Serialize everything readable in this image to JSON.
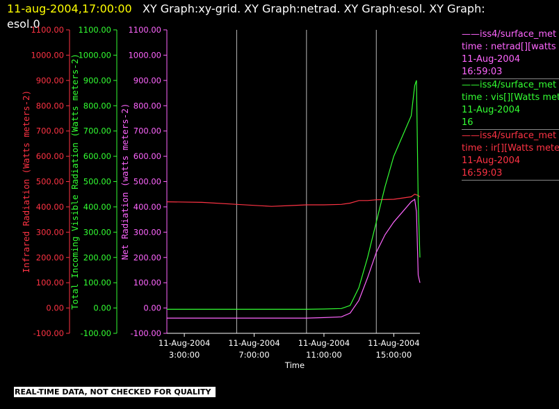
{
  "header": {
    "timestamp": "11-aug-2004,17:00:00",
    "title": "XY Graph:xy-grid.  XY Graph:netrad.  XY Graph:esol.  XY Graph:",
    "title_line2": "esol.0"
  },
  "legend": [
    {
      "color": "#ff66ff",
      "lines": [
        "——iss4/surface_met",
        "time : netrad[][watts me",
        "11-Aug-2004",
        "16:59:03"
      ]
    },
    {
      "color": "#33ff33",
      "lines": [
        "——iss4/surface_met",
        "time : vis[][Watts meter",
        "11-Aug-2004",
        "16"
      ]
    },
    {
      "color": "#ff3344",
      "lines": [
        "——iss4/surface_met",
        "time : ir[][Watts meters",
        "11-Aug-2004",
        "16:59:03"
      ]
    }
  ],
  "footer": "REAL-TIME DATA, NOT CHECKED FOR QUALITY",
  "chart_data": {
    "type": "line",
    "xlabel": "Time",
    "x_ticks": [
      {
        "date": "11-Aug-2004",
        "time": "3:00:00",
        "hour": 3
      },
      {
        "date": "11-Aug-2004",
        "time": "7:00:00",
        "hour": 7
      },
      {
        "date": "11-Aug-2004",
        "time": "11:00:00",
        "hour": 11
      },
      {
        "date": "11-Aug-2004",
        "time": "15:00:00",
        "hour": 15
      }
    ],
    "xlim_hours": [
      2,
      16.5
    ],
    "grid_x_hours": [
      6,
      10,
      14
    ],
    "y_ticks": [
      "1100.00",
      "1000.00",
      "900.00",
      "800.00",
      "700.00",
      "600.00",
      "500.00",
      "400.00",
      "300.00",
      "200.00",
      "100.00",
      "0.00",
      "-100.00"
    ],
    "ylim": [
      -100,
      1100
    ],
    "axes": [
      {
        "name": "ir",
        "label": "Infrared Radiation (Watts meters-2)",
        "color": "#ff3344"
      },
      {
        "name": "vis",
        "label": "Total Incoming Visible Radiation (Watts meters-2)",
        "color": "#33ff33"
      },
      {
        "name": "netrad",
        "label": "Net Radiation (watts meters-2)",
        "color": "#ff66ff"
      }
    ],
    "series": [
      {
        "name": "ir",
        "color": "#ff3344",
        "x": [
          2,
          4,
          6,
          8,
          9,
          10,
          11,
          12,
          12.5,
          13,
          13.5,
          14,
          15,
          16,
          16.2,
          16.4,
          16.5
        ],
        "y": [
          420,
          418,
          410,
          402,
          405,
          408,
          408,
          410,
          415,
          425,
          425,
          428,
          430,
          440,
          450,
          445,
          440
        ]
      },
      {
        "name": "vis",
        "color": "#33ff33",
        "x": [
          2,
          4,
          6,
          8,
          10,
          11,
          12,
          12.5,
          13,
          13.5,
          14,
          14.5,
          15,
          15.5,
          16,
          16.2,
          16.3,
          16.4,
          16.5
        ],
        "y": [
          -5,
          -5,
          -5,
          -5,
          -5,
          -4,
          -2,
          10,
          80,
          200,
          340,
          480,
          600,
          680,
          760,
          880,
          900,
          420,
          200
        ]
      },
      {
        "name": "netrad",
        "color": "#ff66ff",
        "x": [
          2,
          4,
          6,
          8,
          10,
          11,
          12,
          12.5,
          13,
          13.5,
          14,
          14.5,
          15,
          15.5,
          16,
          16.2,
          16.3,
          16.4,
          16.5
        ],
        "y": [
          -40,
          -40,
          -40,
          -40,
          -40,
          -38,
          -35,
          -20,
          30,
          120,
          220,
          290,
          340,
          380,
          420,
          430,
          380,
          130,
          100
        ]
      }
    ]
  }
}
